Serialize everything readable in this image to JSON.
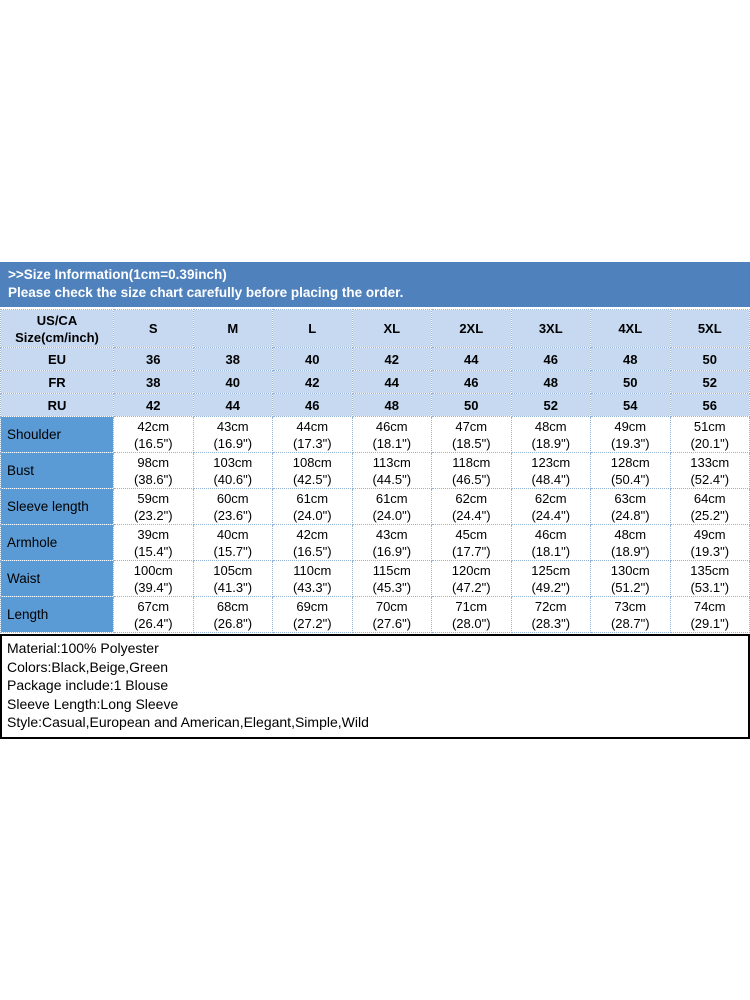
{
  "banner": {
    "line1": ">>Size Information(1cm=0.39inch)",
    "line2": "Please check the size chart carefully before placing the order."
  },
  "table": {
    "corner_line1": "US/CA",
    "corner_line2": "Size(cm/inch)",
    "size_columns": [
      "S",
      "M",
      "L",
      "XL",
      "2XL",
      "3XL",
      "4XL",
      "5XL"
    ],
    "conversion_rows": [
      {
        "label": "EU",
        "values": [
          "36",
          "38",
          "40",
          "42",
          "44",
          "46",
          "48",
          "50"
        ]
      },
      {
        "label": "FR",
        "values": [
          "38",
          "40",
          "42",
          "44",
          "46",
          "48",
          "50",
          "52"
        ]
      },
      {
        "label": "RU",
        "values": [
          "42",
          "44",
          "46",
          "48",
          "50",
          "52",
          "54",
          "56"
        ]
      }
    ],
    "measurement_rows": [
      {
        "label": "Shoulder",
        "cm": [
          "42cm",
          "43cm",
          "44cm",
          "46cm",
          "47cm",
          "48cm",
          "49cm",
          "51cm"
        ],
        "inch": [
          "(16.5\")",
          "(16.9\")",
          "(17.3\")",
          "(18.1\")",
          "(18.5\")",
          "(18.9\")",
          "(19.3\")",
          "(20.1\")"
        ]
      },
      {
        "label": "Bust",
        "cm": [
          "98cm",
          "103cm",
          "108cm",
          "113cm",
          "118cm",
          "123cm",
          "128cm",
          "133cm"
        ],
        "inch": [
          "(38.6\")",
          "(40.6\")",
          "(42.5\")",
          "(44.5\")",
          "(46.5\")",
          "(48.4\")",
          "(50.4\")",
          "(52.4\")"
        ]
      },
      {
        "label": "Sleeve length",
        "cm": [
          "59cm",
          "60cm",
          "61cm",
          "61cm",
          "62cm",
          "62cm",
          "63cm",
          "64cm"
        ],
        "inch": [
          "(23.2\")",
          "(23.6\")",
          "(24.0\")",
          "(24.0\")",
          "(24.4\")",
          "(24.4\")",
          "(24.8\")",
          "(25.2\")"
        ]
      },
      {
        "label": "Armhole",
        "cm": [
          "39cm",
          "40cm",
          "42cm",
          "43cm",
          "45cm",
          "46cm",
          "48cm",
          "49cm"
        ],
        "inch": [
          "(15.4\")",
          "(15.7\")",
          "(16.5\")",
          "(16.9\")",
          "(17.7\")",
          "(18.1\")",
          "(18.9\")",
          "(19.3\")"
        ]
      },
      {
        "label": "Waist",
        "cm": [
          "100cm",
          "105cm",
          "110cm",
          "115cm",
          "120cm",
          "125cm",
          "130cm",
          "135cm"
        ],
        "inch": [
          "(39.4\")",
          "(41.3\")",
          "(43.3\")",
          "(45.3\")",
          "(47.2\")",
          "(49.2\")",
          "(51.2\")",
          "(53.1\")"
        ]
      },
      {
        "label": "Length",
        "cm": [
          "67cm",
          "68cm",
          "69cm",
          "70cm",
          "71cm",
          "72cm",
          "73cm",
          "74cm"
        ],
        "inch": [
          "(26.4\")",
          "(26.8\")",
          "(27.2\")",
          "(27.6\")",
          "(28.0\")",
          "(28.3\")",
          "(28.7\")",
          "(29.1\")"
        ]
      }
    ]
  },
  "product_info": {
    "lines": [
      "Material:100% Polyester",
      "Colors:Black,Beige,Green",
      "Package include:1 Blouse",
      "Sleeve Length:Long Sleeve",
      "Style:Casual,European and American,Elegant,Simple,Wild"
    ]
  },
  "colors": {
    "banner_bg": "#4f81bd",
    "header_bg": "#c6d9f0",
    "label_column_bg": "#5b9bd5",
    "grid_dotted": "#95b3d7",
    "info_border": "#000000",
    "banner_text": "#ffffff",
    "body_text": "#000000"
  }
}
